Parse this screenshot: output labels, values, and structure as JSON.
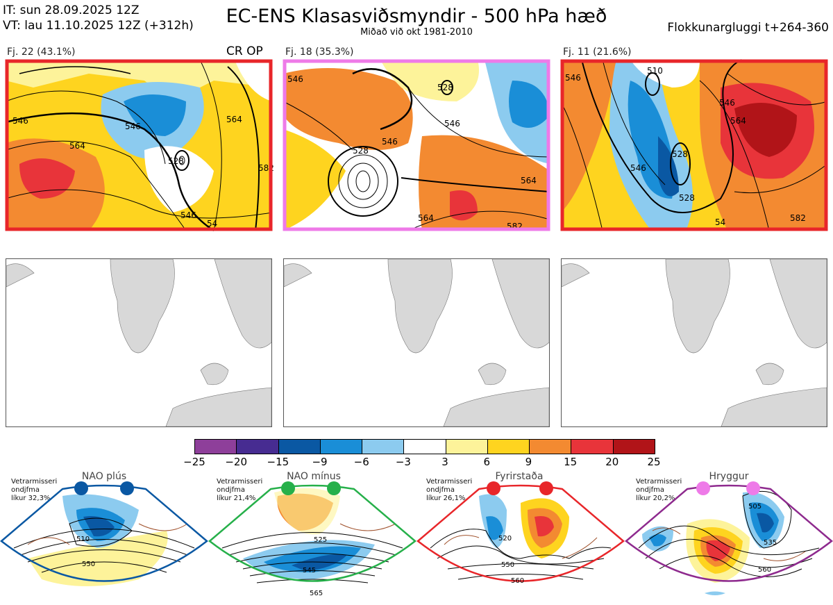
{
  "header": {
    "it_line": "IT: sun 28.09.2025 12Z",
    "vt_line": "VT: lau 11.10.2025 12Z  (+312h)",
    "title": "EC-ENS Klasasviðsmyndir - 500 hPa hæð",
    "subtitle": "Miðað við okt 1981-2010",
    "window": "Flokkunargluggi t+264-360"
  },
  "panels": [
    {
      "label": "Fj. 22 (43.1%)",
      "tag": "CR OP",
      "frame_color": "#e8262a",
      "contours": [
        "546",
        "546",
        "564",
        "528",
        "546",
        "564",
        "54",
        "582"
      ]
    },
    {
      "label": "Fj. 18 (35.3%)",
      "tag": "",
      "frame_color": "#ee7ae8",
      "contours": [
        "546",
        "528",
        "546",
        "546",
        "528",
        "564",
        "564",
        "582"
      ]
    },
    {
      "label": "Fj. 11 (21.6%)",
      "tag": "",
      "frame_color": "#e8262a",
      "contours": [
        "546",
        "510",
        "546",
        "564",
        "528",
        "546",
        "528",
        "54",
        "582"
      ]
    }
  ],
  "colorbar": {
    "ticks": [
      "−25",
      "−20",
      "−15",
      "−9",
      "−6",
      "−3",
      "3",
      "6",
      "9",
      "15",
      "20",
      "25"
    ],
    "colors": [
      "#8e3f9a",
      "#472c91",
      "#0a58a3",
      "#1a8ed7",
      "#8ccbef",
      "#ffffff",
      "#fdf39a",
      "#fed41f",
      "#f38a31",
      "#e8343a",
      "#b11418"
    ]
  },
  "regimes": [
    {
      "name": "NAO plús",
      "season": "Vetrarmisseri",
      "kind": "ondjfma",
      "likelihood": "líkur 32,3%",
      "dot_color": "#0a58a3",
      "border_color": "#0a58a3",
      "contours": [
        "510",
        "550"
      ]
    },
    {
      "name": "NAO mínus",
      "season": "Vetrarmisseri",
      "kind": "ondjfma",
      "likelihood": "líkur 21,4%",
      "dot_color": "#26b04a",
      "border_color": "#26b04a",
      "contours": [
        "525",
        "545",
        "565"
      ]
    },
    {
      "name": "Fyrirstaða",
      "season": "Vetrarmisseri",
      "kind": "ondjfma",
      "likelihood": "líkur 26,1%",
      "dot_color": "#e8262a",
      "border_color": "#e8262a",
      "contours": [
        "520",
        "550",
        "560"
      ]
    },
    {
      "name": "Hryggur",
      "season": "Vetrarmisseri",
      "kind": "ondjfma",
      "likelihood": "líkur 20,2%",
      "dot_color": "#ee7ae8",
      "border_color": "#8e2a8e",
      "contours": [
        "505",
        "535",
        "560"
      ]
    }
  ]
}
